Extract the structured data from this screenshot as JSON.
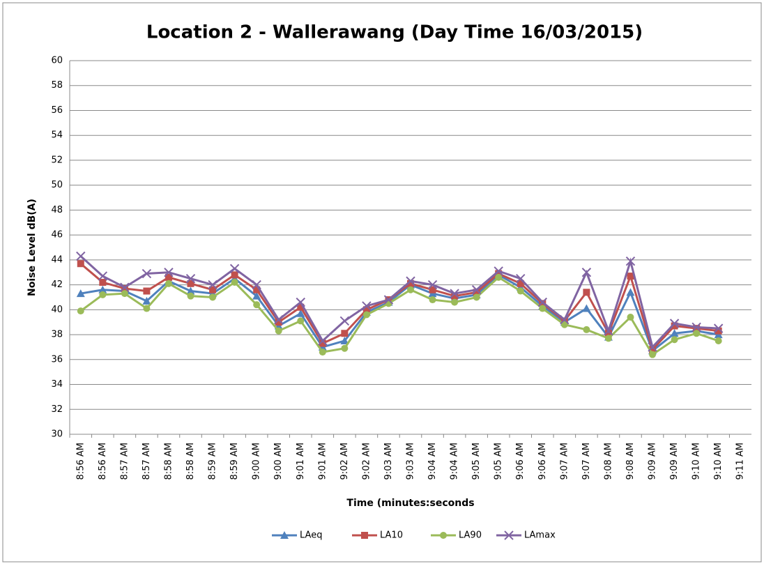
{
  "chart_data": {
    "type": "line",
    "title": "Location 2 - Wallerawang  (Day Time 16/03/2015)",
    "x_label": "Time (minutes:seconds",
    "y_label": "Noise Level dB(A)",
    "categories": [
      "8:56 AM",
      "8:56 AM",
      "8:57 AM",
      "8:57 AM",
      "8:58 AM",
      "8:58 AM",
      "8:59 AM",
      "8:59 AM",
      "9:00 AM",
      "9:00 AM",
      "9:01 AM",
      "9:01 AM",
      "9:02 AM",
      "9:02 AM",
      "9:03 AM",
      "9:03 AM",
      "9:04 AM",
      "9:04 AM",
      "9:05 AM",
      "9:05 AM",
      "9:06 AM",
      "9:06 AM",
      "9:07 AM",
      "9:07 AM",
      "9:08 AM",
      "9:08 AM",
      "9:09 AM",
      "9:09 AM",
      "9:10 AM",
      "9:10 AM",
      "9:11 AM"
    ],
    "series": [
      {
        "name": "LAeq",
        "color": "#4f81bd",
        "marker": "triangle",
        "values": [
          41.3,
          41.6,
          41.5,
          40.7,
          42.3,
          41.5,
          41.3,
          42.5,
          41.1,
          38.7,
          39.7,
          37.0,
          37.5,
          39.8,
          40.6,
          42.0,
          41.3,
          40.9,
          41.2,
          42.8,
          41.8,
          40.3,
          39.0,
          40.1,
          37.8,
          41.4,
          36.7,
          38.1,
          38.3,
          38.0,
          null
        ]
      },
      {
        "name": "LA10",
        "color": "#c0504d",
        "marker": "square",
        "values": [
          43.7,
          42.2,
          41.7,
          41.5,
          42.6,
          42.1,
          41.6,
          42.8,
          41.6,
          39.0,
          40.2,
          37.3,
          38.1,
          40.0,
          40.8,
          42.1,
          41.6,
          41.1,
          41.4,
          42.9,
          42.1,
          40.5,
          39.1,
          41.4,
          38.1,
          42.7,
          36.8,
          38.7,
          38.5,
          38.3,
          null
        ]
      },
      {
        "name": "LA90",
        "color": "#9bbb59",
        "marker": "circle",
        "values": [
          39.9,
          41.2,
          41.3,
          40.1,
          42.1,
          41.1,
          41.0,
          42.2,
          40.4,
          38.3,
          39.1,
          36.6,
          36.9,
          39.6,
          40.5,
          41.6,
          40.8,
          40.6,
          41.0,
          42.6,
          41.5,
          40.1,
          38.8,
          38.4,
          37.7,
          39.4,
          36.4,
          37.6,
          38.1,
          37.5,
          null
        ]
      },
      {
        "name": "LAmax",
        "color": "#8064a2",
        "marker": "x",
        "values": [
          44.3,
          42.7,
          41.8,
          42.9,
          43.0,
          42.5,
          42.0,
          43.3,
          42.0,
          39.2,
          40.6,
          37.5,
          39.1,
          40.3,
          40.8,
          42.3,
          42.0,
          41.3,
          41.6,
          43.1,
          42.5,
          40.6,
          39.2,
          43.0,
          38.3,
          43.9,
          37.0,
          38.9,
          38.6,
          38.5,
          null
        ]
      }
    ],
    "ylim": [
      30,
      60
    ],
    "yticks": [
      30,
      32,
      34,
      36,
      38,
      40,
      42,
      44,
      46,
      48,
      50,
      52,
      54,
      56,
      58,
      60
    ],
    "grid": true,
    "legend": "bottom"
  }
}
